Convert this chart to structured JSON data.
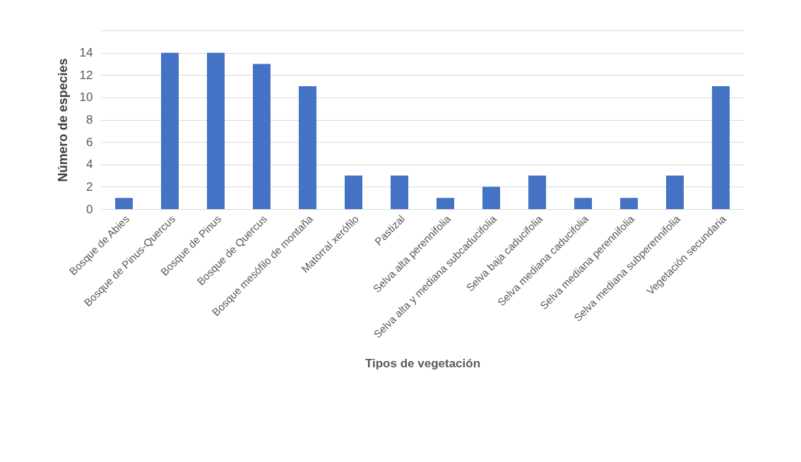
{
  "chart_data": {
    "type": "bar",
    "xlabel": "Tipos de vegetación",
    "ylabel": "Número de especies",
    "categories": [
      "Bosque de Abies",
      "Bosque de Pinus-Quercus",
      "Bosque de Pinus",
      "Bosque de Quercus",
      "Bosque mesófilo de montaña",
      "Matorral xerófilo",
      "Pastizal",
      "Selva alta perennifolia",
      "Selva alta y mediana subcaducifolia",
      "Selva baja caducifolia",
      "Selva mediana caducifolia",
      "Selva mediana perennifolia",
      "Selva mediana subperennifolia",
      "Vegetación secundaria"
    ],
    "values": [
      1,
      14,
      14,
      13,
      11,
      3,
      3,
      1,
      2,
      3,
      1,
      1,
      3,
      11
    ],
    "color": "#4472c4",
    "ylim": [
      0,
      16
    ],
    "yticks": [
      0,
      2,
      4,
      6,
      8,
      10,
      12,
      14,
      {
        "value": 16,
        "label": null
      }
    ],
    "grid": "y"
  }
}
